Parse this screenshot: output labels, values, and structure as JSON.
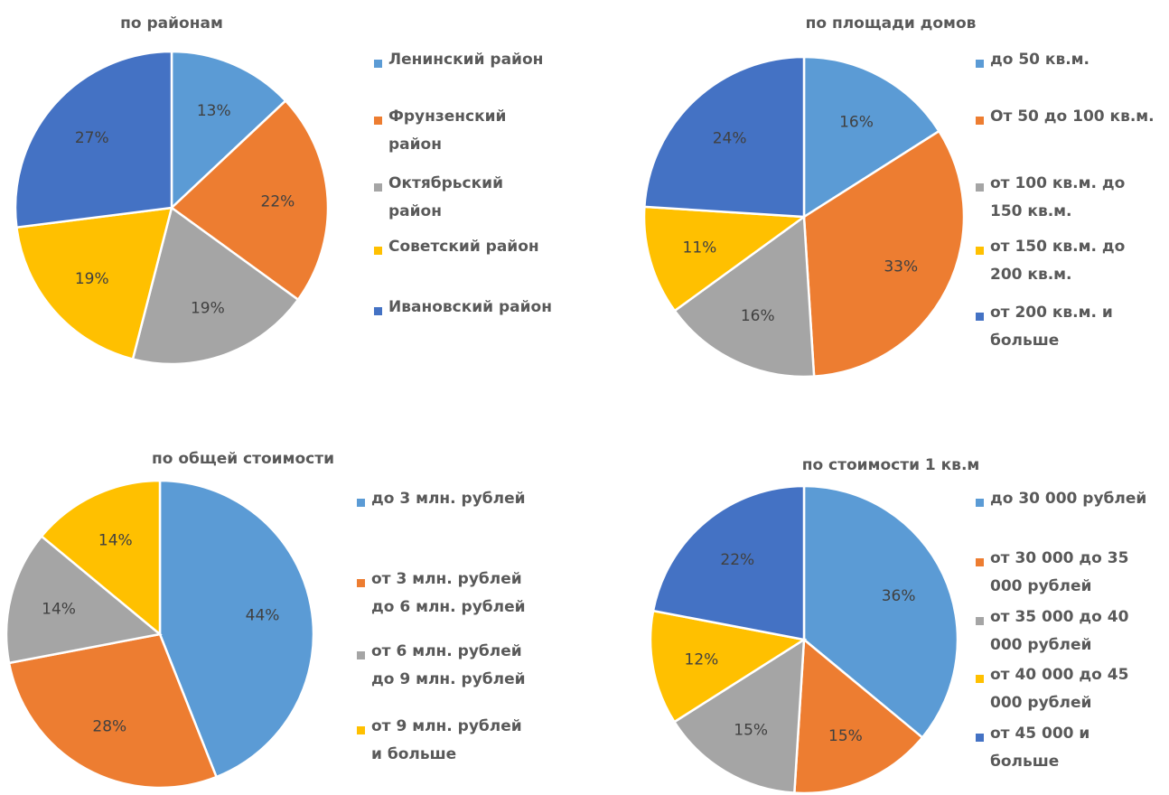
{
  "colors": {
    "light_blue": "#5B9BD5",
    "orange": "#ED7D31",
    "gray": "#A5A5A5",
    "gold": "#FFC000",
    "blue": "#4472C4"
  },
  "chart_data": [
    {
      "type": "pie",
      "title": "по районам",
      "legend": "right",
      "categories": [
        "Ленинский район",
        "Фрунзенский район",
        "Октябрьский район",
        "Советский район",
        "Ивановский район"
      ],
      "values": [
        13,
        22,
        19,
        19,
        27
      ],
      "labels": [
        "13%",
        "22%",
        "19%",
        "19%",
        "27%"
      ],
      "colors": [
        "#5B9BD5",
        "#ED7D31",
        "#A5A5A5",
        "#FFC000",
        "#4472C4"
      ]
    },
    {
      "type": "pie",
      "title": "по площади домов",
      "legend": "right",
      "categories": [
        "до 50 кв.м.",
        "От 50 до 100 кв.м.",
        "от 100 кв.м. до 150 кв.м.",
        "от 150 кв.м. до 200 кв.м.",
        "от 200 кв.м. и больше"
      ],
      "values": [
        16,
        33,
        16,
        11,
        24
      ],
      "labels": [
        "16%",
        "33%",
        "16%",
        "11%",
        "24%"
      ],
      "colors": [
        "#5B9BD5",
        "#ED7D31",
        "#A5A5A5",
        "#FFC000",
        "#4472C4"
      ]
    },
    {
      "type": "pie",
      "title": "по общей стоимости",
      "legend": "right",
      "categories": [
        "до 3 млн. рублей",
        "от 3 млн. рублей до 6 млн. рублей",
        "от 6 млн. рублей до 9 млн. рублей",
        "от 9 млн. рублей и больше"
      ],
      "values": [
        44,
        28,
        14,
        14
      ],
      "labels": [
        "44%",
        "28%",
        "14%",
        "14%"
      ],
      "colors": [
        "#5B9BD5",
        "#ED7D31",
        "#A5A5A5",
        "#FFC000"
      ]
    },
    {
      "type": "pie",
      "title": "по стоимости 1 кв.м",
      "legend": "right",
      "categories": [
        "до 30 000 рублей",
        "от 30 000 до 35 000 рублей",
        "от 35 000 до 40 000 рублей",
        "от 40 000 до 45 000 рублей",
        "от 45 000 и больше"
      ],
      "values": [
        36,
        15,
        15,
        12,
        22
      ],
      "labels": [
        "36%",
        "15%",
        "15%",
        "12%",
        "22%"
      ],
      "colors": [
        "#5B9BD5",
        "#ED7D31",
        "#A5A5A5",
        "#FFC000",
        "#4472C4"
      ]
    }
  ]
}
